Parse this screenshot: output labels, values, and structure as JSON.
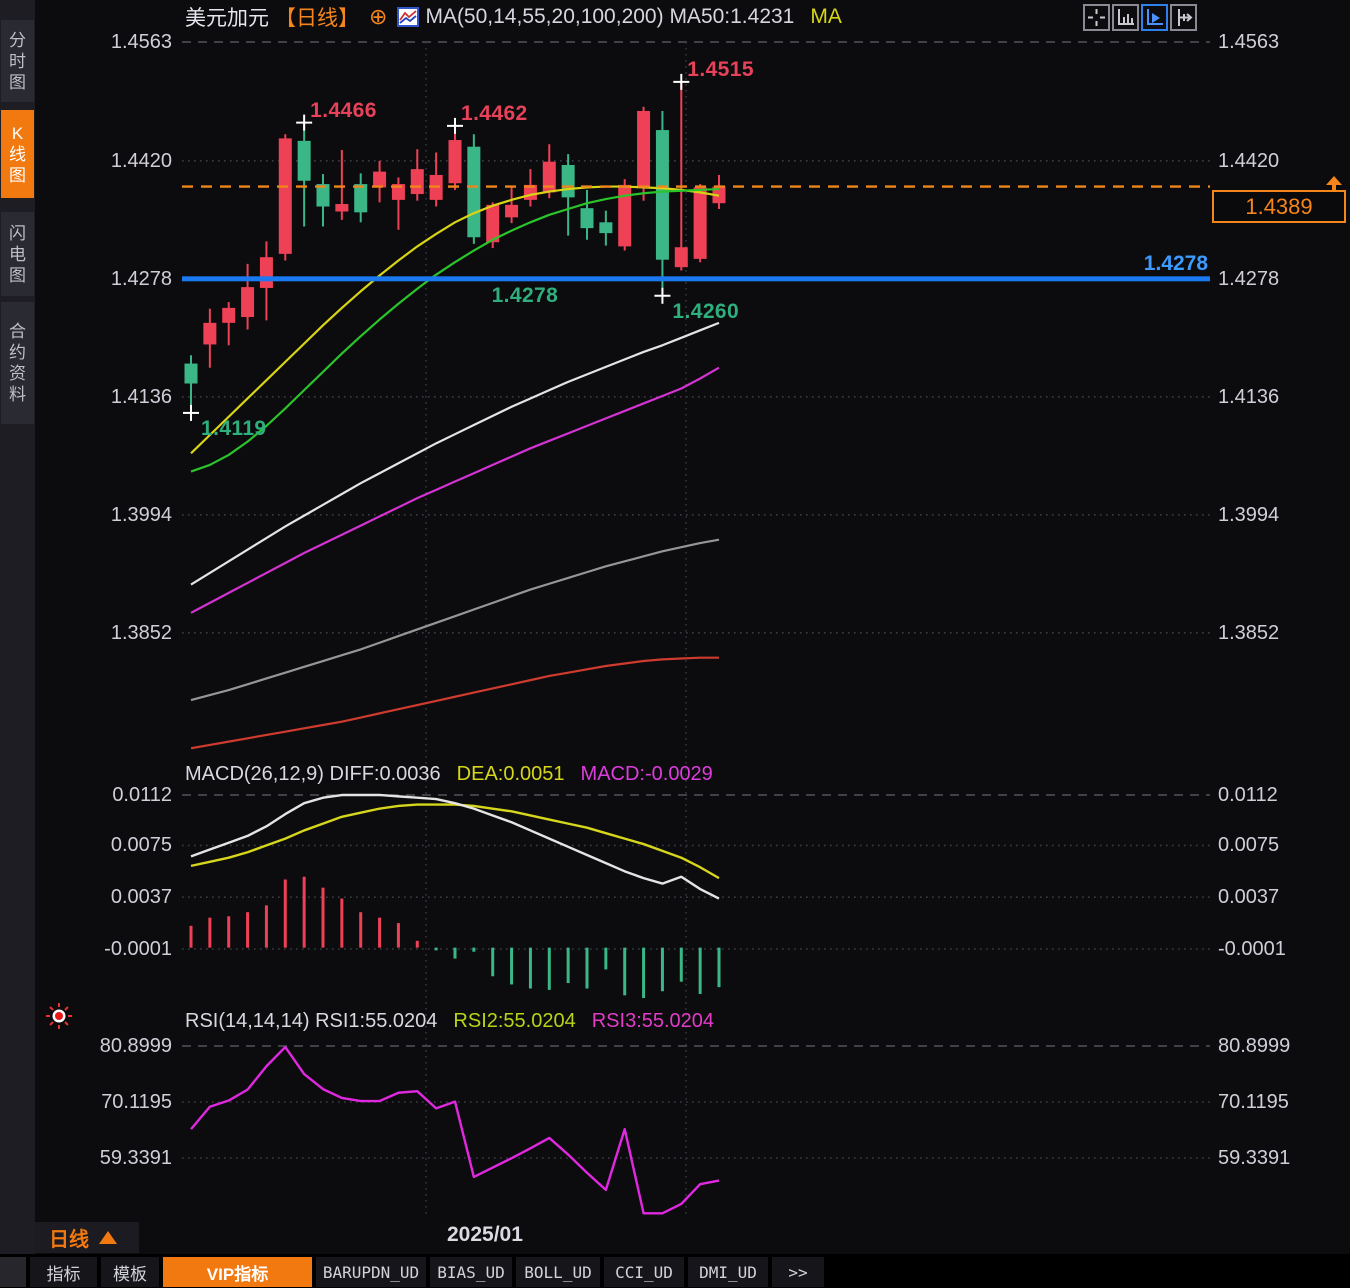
{
  "header": {
    "symbol": "美元加元",
    "period_tag": "【日线】",
    "plus_icon": "⊕",
    "ma_text": "MA(50,14,55,20,100,200) MA50:1.4231",
    "ma_label": "MA"
  },
  "toolbar": {
    "buttons": [
      "crosshair",
      "y-axis-scale",
      "auto-fit",
      "x-axis-shift"
    ],
    "active_index": 2
  },
  "sidebar": {
    "items": [
      {
        "label": "分时图",
        "active": false
      },
      {
        "label": "K线图",
        "active": true
      },
      {
        "label": "闪电图",
        "active": false
      },
      {
        "label": "合约资料",
        "active": false
      }
    ]
  },
  "axes": {
    "price": [
      "1.4563",
      "1.4420",
      "1.4278",
      "1.4136",
      "1.3994",
      "1.3852"
    ],
    "macd": [
      "0.0112",
      "0.0075",
      "0.0037",
      "-0.0001"
    ],
    "rsi": [
      "80.8999",
      "70.1195",
      "59.3391"
    ]
  },
  "support_line": {
    "label": "1.4278"
  },
  "current_price": {
    "label": "1.4389"
  },
  "annotations": [
    {
      "text": "1.4466",
      "candle": 6,
      "side": "high",
      "price": 1.4466,
      "color": "red"
    },
    {
      "text": "1.4462",
      "candle": 14,
      "side": "high",
      "price": 1.4462,
      "color": "red"
    },
    {
      "text": "1.4515",
      "candle": 26,
      "side": "high",
      "price": 1.4515,
      "color": "red"
    },
    {
      "text": "1.4119",
      "candle": 0,
      "side": "low",
      "price": 1.4119,
      "color": "green"
    },
    {
      "text": "1.4260",
      "candle": 25,
      "side": "low",
      "price": 1.426,
      "color": "green"
    },
    {
      "text": "1.4278",
      "candle": 17,
      "side": "label",
      "price": 1.4278,
      "color": "green"
    }
  ],
  "panels": {
    "macd": {
      "title": "MACD(26,12,9)",
      "diff": "DIFF:0.0036",
      "dea": "DEA:0.0051",
      "macd": "MACD:-0.0029"
    },
    "rsi": {
      "title": "RSI(14,14,14)",
      "rsi1": "RSI1:55.0204",
      "rsi2": "RSI2:55.0204",
      "rsi3": "RSI3:55.0204"
    }
  },
  "bottom": {
    "period": "日线",
    "date": "2025/01"
  },
  "tabs": [
    {
      "label": "指标",
      "active": false
    },
    {
      "label": "模板",
      "active": false
    },
    {
      "label": "VIP指标",
      "active": true
    },
    {
      "label": "BARUPDN_UD",
      "active": false
    },
    {
      "label": "BIAS_UD",
      "active": false
    },
    {
      "label": "BOLL_UD",
      "active": false
    },
    {
      "label": "CCI_UD",
      "active": false
    },
    {
      "label": "DMI_UD",
      "active": false
    },
    {
      "label": ">>",
      "active": false
    }
  ],
  "chart_data": {
    "type": "candlestick",
    "title": "美元加元 日线 (USD/CAD daily)",
    "price_gridlines": [
      1.4563,
      1.442,
      1.4278,
      1.4136,
      1.3994,
      1.3852
    ],
    "macd_gridlines": [
      0.0112,
      0.0075,
      0.0037,
      -0.0001
    ],
    "rsi_gridlines": [
      80.8999,
      70.1195,
      59.3391
    ],
    "support_level": 1.4278,
    "last_price": 1.4389,
    "x_axis_label": "2025/01",
    "candles_ohlc": [
      [
        1.4176,
        1.4186,
        1.412,
        1.4152
      ],
      [
        1.4199,
        1.4242,
        1.4171,
        1.4225
      ],
      [
        1.4225,
        1.425,
        1.4198,
        1.4243
      ],
      [
        1.4232,
        1.4296,
        1.4217,
        1.4268
      ],
      [
        1.4267,
        1.4323,
        1.4228,
        1.4304
      ],
      [
        1.4308,
        1.4452,
        1.43,
        1.4447
      ],
      [
        1.4444,
        1.4466,
        1.4341,
        1.4396
      ],
      [
        1.4392,
        1.4404,
        1.4341,
        1.4365
      ],
      [
        1.4359,
        1.4433,
        1.4349,
        1.4368
      ],
      [
        1.4392,
        1.4405,
        1.4346,
        1.4358
      ],
      [
        1.4388,
        1.442,
        1.437,
        1.4407
      ],
      [
        1.4373,
        1.44,
        1.4337,
        1.4392
      ],
      [
        1.438,
        1.4434,
        1.4372,
        1.441
      ],
      [
        1.4373,
        1.443,
        1.4365,
        1.4403
      ],
      [
        1.4393,
        1.4462,
        1.4385,
        1.4445
      ],
      [
        1.4437,
        1.4452,
        1.432,
        1.4328
      ],
      [
        1.4322,
        1.437,
        1.4315,
        1.4367
      ],
      [
        1.4352,
        1.439,
        1.4345,
        1.4367
      ],
      [
        1.4373,
        1.441,
        1.4365,
        1.4391
      ],
      [
        1.4382,
        1.444,
        1.4375,
        1.4419
      ],
      [
        1.4415,
        1.4428,
        1.433,
        1.4376
      ],
      [
        1.4363,
        1.4385,
        1.4325,
        1.4339
      ],
      [
        1.4346,
        1.436,
        1.4318,
        1.4333
      ],
      [
        1.4317,
        1.4398,
        1.4312,
        1.4391
      ],
      [
        1.4387,
        1.4485,
        1.4372,
        1.448
      ],
      [
        1.4457,
        1.448,
        1.426,
        1.4301
      ],
      [
        1.4292,
        1.4515,
        1.4288,
        1.4316
      ],
      [
        1.4302,
        1.4392,
        1.4298,
        1.4388
      ],
      [
        1.4369,
        1.4403,
        1.4362,
        1.4389
      ]
    ],
    "ma_lines": {
      "yellow": [
        1.4068,
        1.409,
        1.4112,
        1.4134,
        1.4156,
        1.4178,
        1.42,
        1.4222,
        1.4243,
        1.4263,
        1.4282,
        1.43,
        1.4317,
        1.4332,
        1.4346,
        1.4357,
        1.4366,
        1.4373,
        1.4379,
        1.4383,
        1.4386,
        1.4388,
        1.4389,
        1.4389,
        1.4388,
        1.4387,
        1.4385,
        1.4382,
        1.4378
      ],
      "green": [
        1.4046,
        1.4054,
        1.4066,
        1.4082,
        1.4101,
        1.4122,
        1.4144,
        1.4166,
        1.4188,
        1.4209,
        1.4229,
        1.4248,
        1.4266,
        1.4283,
        1.4298,
        1.4312,
        1.4325,
        1.4336,
        1.4346,
        1.4355,
        1.4362,
        1.4369,
        1.4374,
        1.4378,
        1.4381,
        1.4383,
        1.4384,
        1.4385,
        1.4386
      ],
      "white": [
        1.391,
        1.3924,
        1.3938,
        1.3952,
        1.3966,
        1.398,
        1.3993,
        1.4006,
        1.4019,
        1.4032,
        1.4044,
        1.4056,
        1.4068,
        1.408,
        1.4091,
        1.4102,
        1.4113,
        1.4124,
        1.4134,
        1.4144,
        1.4154,
        1.4163,
        1.4172,
        1.4181,
        1.419,
        1.4198,
        1.4207,
        1.4216,
        1.4225
      ],
      "magenta": [
        1.3876,
        1.3888,
        1.39,
        1.3912,
        1.3924,
        1.3936,
        1.3948,
        1.3959,
        1.397,
        1.3981,
        1.3992,
        1.4003,
        1.4014,
        1.4024,
        1.4034,
        1.4044,
        1.4054,
        1.4064,
        1.4074,
        1.4083,
        1.4092,
        1.4101,
        1.411,
        1.4119,
        1.4128,
        1.4137,
        1.4146,
        1.4158,
        1.4171
      ],
      "gray": [
        1.3771,
        1.3777,
        1.3783,
        1.379,
        1.3797,
        1.3804,
        1.3811,
        1.3818,
        1.3825,
        1.3832,
        1.384,
        1.3848,
        1.3856,
        1.3864,
        1.3872,
        1.388,
        1.3888,
        1.3896,
        1.3904,
        1.3911,
        1.3918,
        1.3925,
        1.3932,
        1.3938,
        1.3944,
        1.395,
        1.3955,
        1.396,
        1.3964
      ],
      "red": [
        1.3713,
        1.3717,
        1.3721,
        1.3725,
        1.3729,
        1.3733,
        1.3737,
        1.3741,
        1.3745,
        1.375,
        1.3755,
        1.376,
        1.3765,
        1.377,
        1.3775,
        1.378,
        1.3785,
        1.379,
        1.3795,
        1.38,
        1.3804,
        1.3808,
        1.3812,
        1.3815,
        1.3818,
        1.382,
        1.3821,
        1.3822,
        1.3822
      ]
    },
    "macd": {
      "hist": [
        0.0016,
        0.0022,
        0.0023,
        0.0026,
        0.0031,
        0.005,
        0.0052,
        0.0044,
        0.0036,
        0.0026,
        0.0022,
        0.0018,
        0.0005,
        -0.0002,
        -0.0008,
        -0.0003,
        -0.0021,
        -0.0027,
        -0.003,
        -0.0031,
        -0.0026,
        -0.003,
        -0.0016,
        -0.0035,
        -0.0037,
        -0.0032,
        -0.0025,
        -0.0034,
        -0.0029
      ],
      "diff": [
        0.0067,
        0.0072,
        0.0077,
        0.0082,
        0.0089,
        0.0098,
        0.0106,
        0.011,
        0.0112,
        0.0112,
        0.0112,
        0.0111,
        0.011,
        0.0109,
        0.0106,
        0.0102,
        0.0097,
        0.0092,
        0.0086,
        0.008,
        0.0074,
        0.0068,
        0.0062,
        0.0056,
        0.0051,
        0.0047,
        0.0052,
        0.0043,
        0.0036
      ],
      "dea": [
        0.006,
        0.0063,
        0.0066,
        0.007,
        0.0075,
        0.008,
        0.0086,
        0.0091,
        0.0096,
        0.0099,
        0.0102,
        0.0104,
        0.0105,
        0.0105,
        0.0105,
        0.0104,
        0.0102,
        0.01,
        0.0097,
        0.0094,
        0.0091,
        0.0088,
        0.0084,
        0.008,
        0.0076,
        0.0071,
        0.0066,
        0.0059,
        0.0051
      ]
    },
    "rsi": [
      64.9,
      69.2,
      70.4,
      72.5,
      77.0,
      80.7,
      75.5,
      72.6,
      70.9,
      70.3,
      70.3,
      71.9,
      72.2,
      68.9,
      70.2,
      55.7,
      57.5,
      59.3,
      61.2,
      63.2,
      60.0,
      56.5,
      53.2,
      64.9,
      48.7,
      48.7,
      50.5,
      54.3,
      55.0
    ],
    "colors": {
      "up_candle": "#ee4156",
      "down_candle": "#3bb787",
      "ma_yellow": "#d9d414",
      "ma_green": "#2bc42b",
      "ma_white": "#e4e4e4",
      "ma_magenta": "#d433d4",
      "ma_gray": "#969696",
      "ma_red": "#cf3b2e",
      "support_blue": "#1a78f0",
      "current_orange": "#f0851c",
      "diff_line": "#e4e4e4",
      "dea_line": "#d6d61c",
      "rsi_line": "#e128e1"
    }
  }
}
